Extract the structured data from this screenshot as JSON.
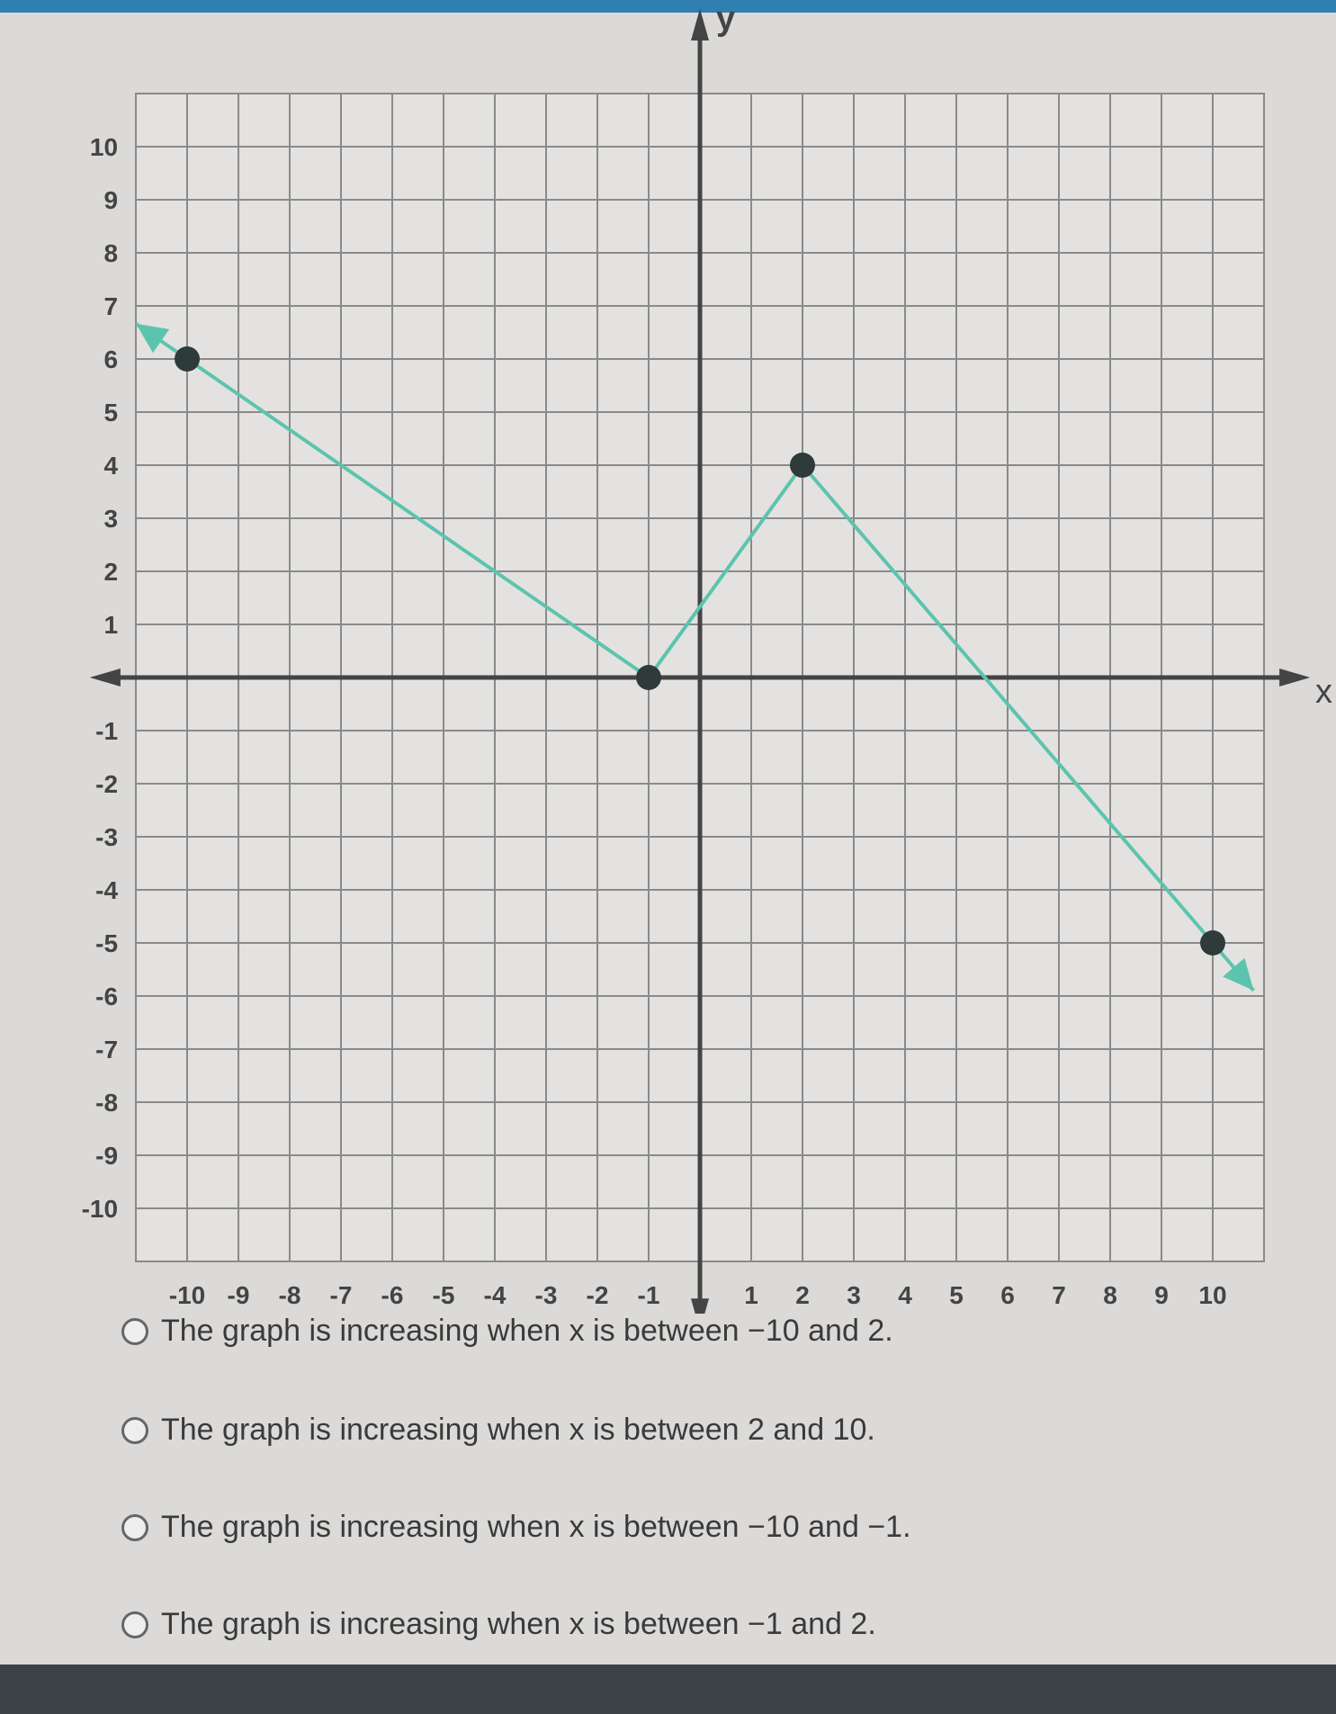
{
  "chart_data": {
    "type": "line",
    "xlabel": "x",
    "ylabel": "y",
    "xlim": [
      -10,
      10
    ],
    "ylim": [
      -10,
      10
    ],
    "x_ticks": [
      -10,
      -9,
      -8,
      -7,
      -6,
      -5,
      -4,
      -3,
      -2,
      -1,
      1,
      2,
      3,
      4,
      5,
      6,
      7,
      8,
      9,
      10
    ],
    "y_ticks": [
      10,
      9,
      8,
      7,
      6,
      5,
      4,
      3,
      2,
      1,
      -1,
      -2,
      -3,
      -4,
      -5,
      -6,
      -7,
      -8,
      -9,
      -10
    ],
    "grid": true,
    "series": [
      {
        "points": [
          [
            -10,
            6
          ],
          [
            -1,
            0
          ],
          [
            2,
            4
          ],
          [
            10,
            -5
          ]
        ],
        "arrows_at_ends": true,
        "color": "#5cc4ae",
        "marker_color": "#2f3a3a"
      }
    ]
  },
  "options": [
    {
      "label": "The graph is increasing when x is between −10 and 2."
    },
    {
      "label": "The graph is increasing when x is between 2 and 10."
    },
    {
      "label": "The graph is increasing when x is between −10 and −1."
    },
    {
      "label": "The graph is increasing when x is between −1 and 2."
    }
  ]
}
